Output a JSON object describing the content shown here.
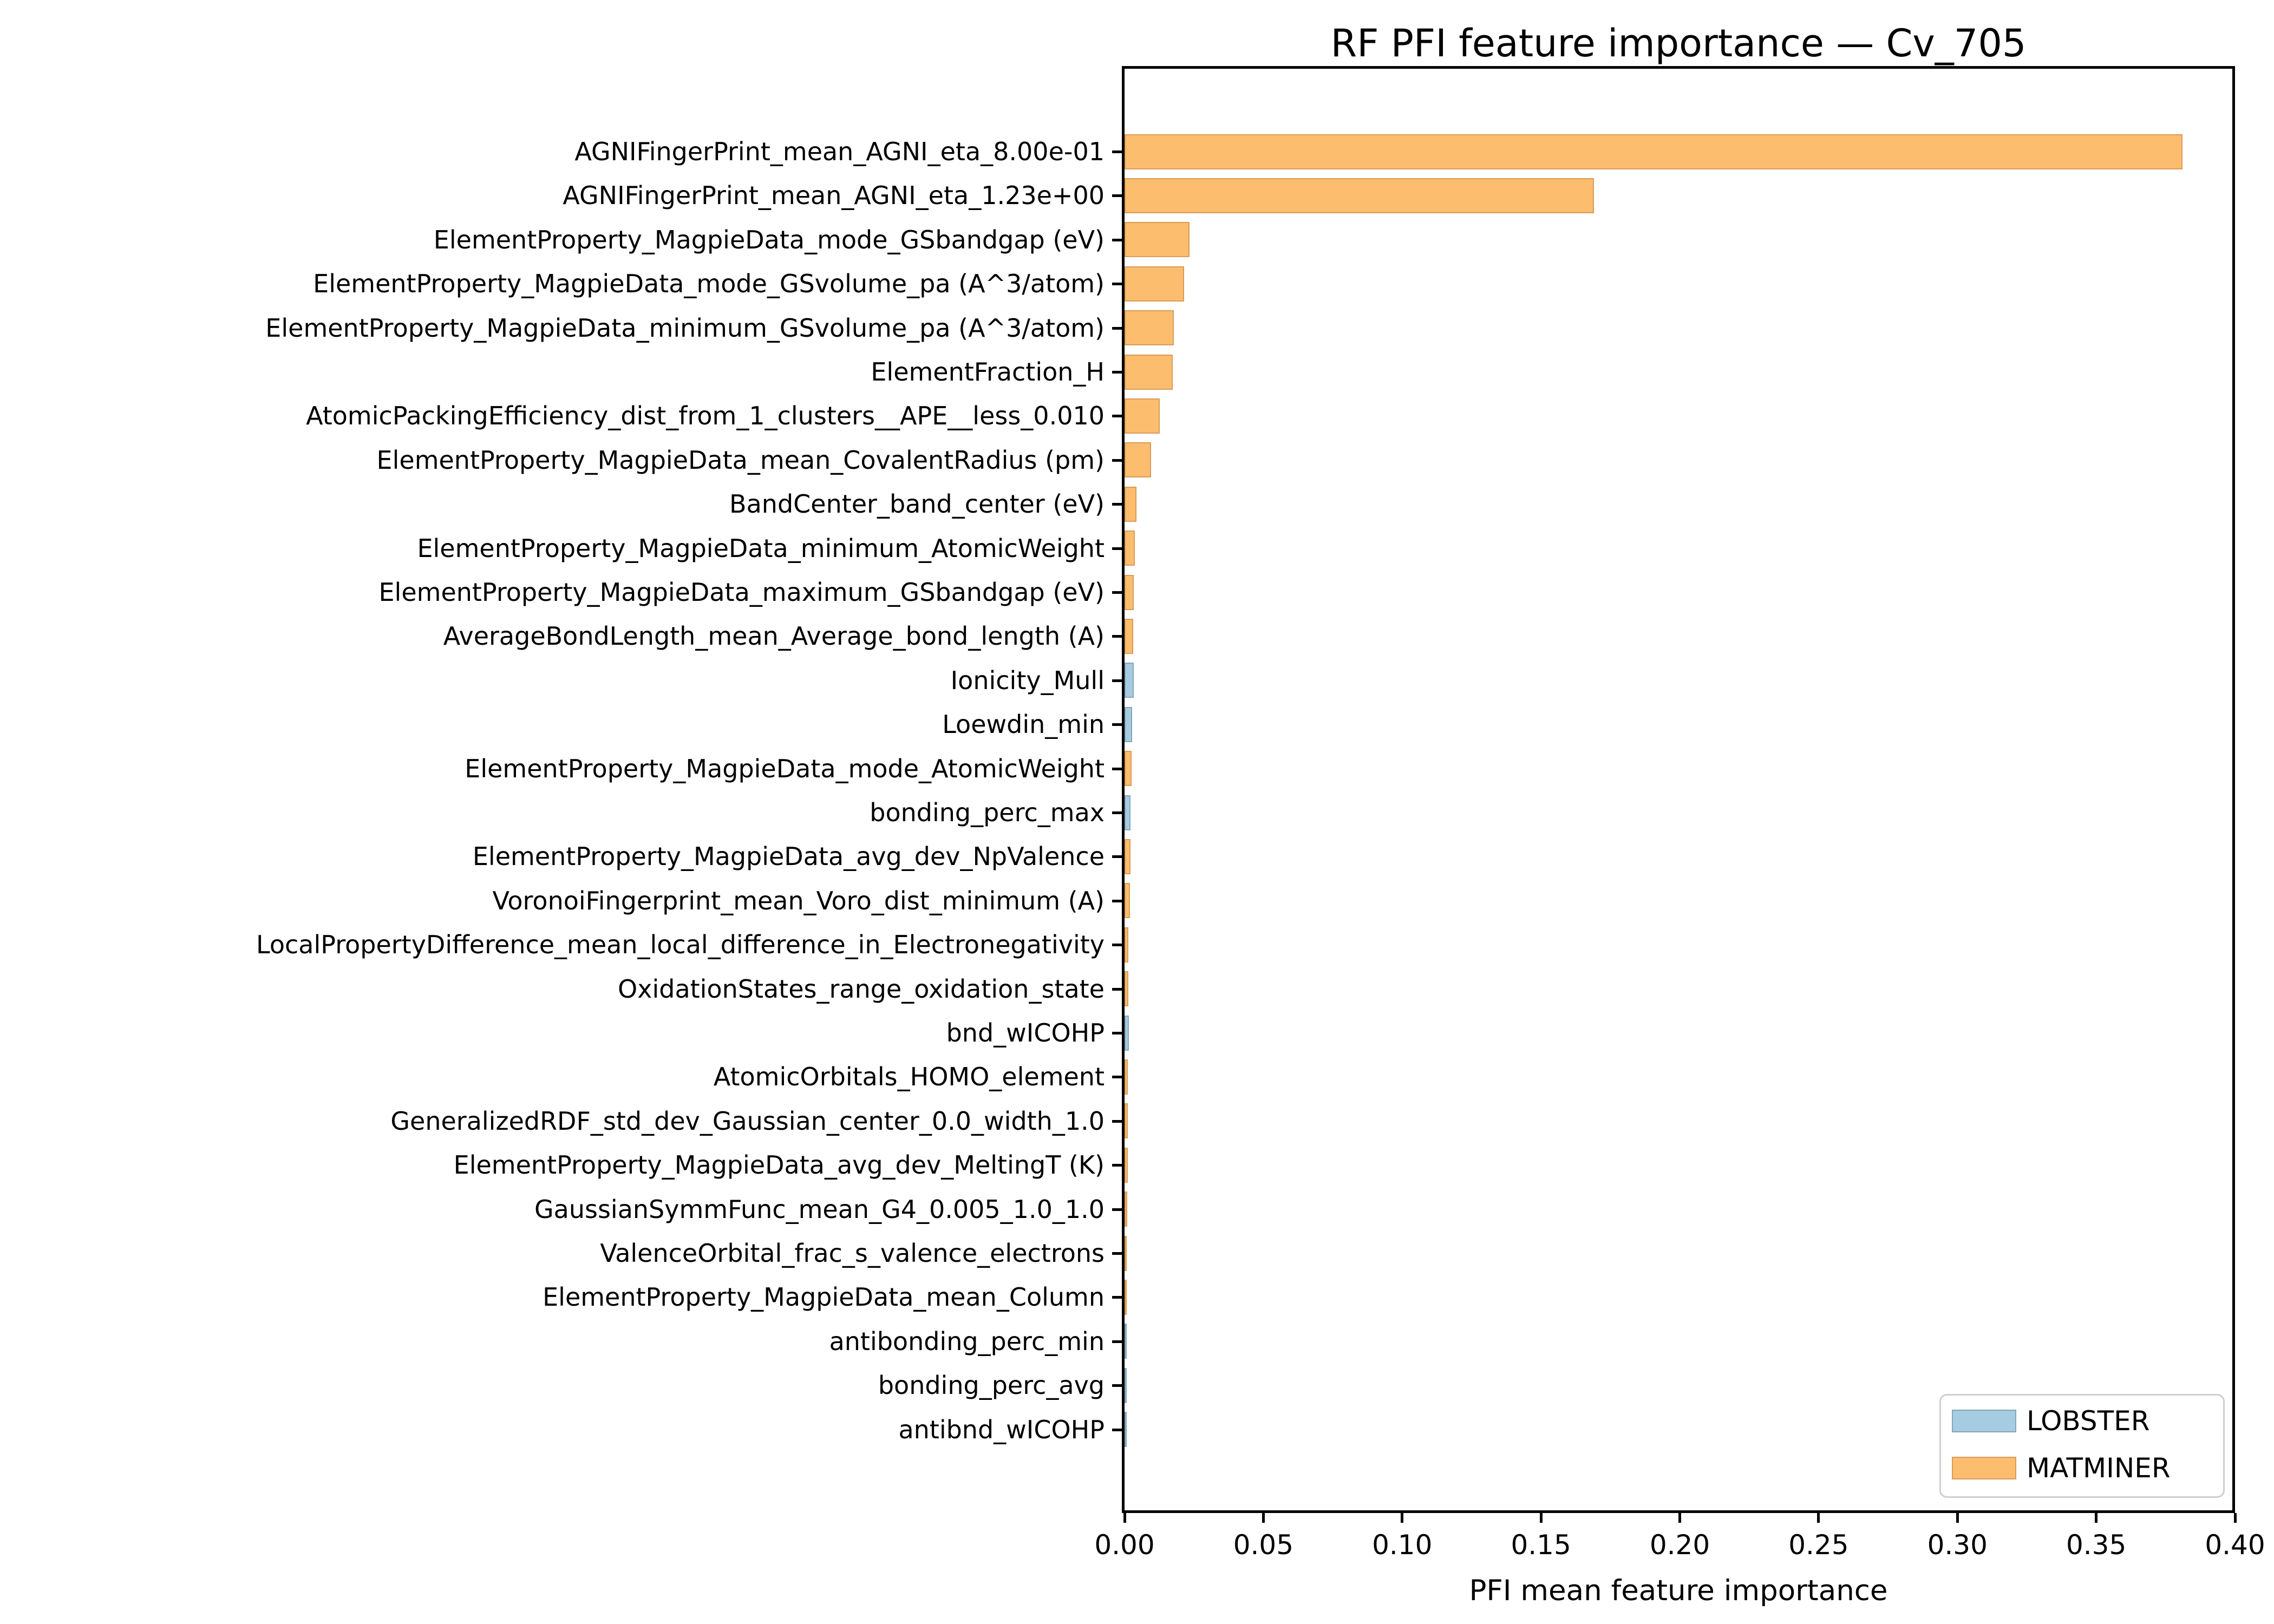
{
  "chart_data": {
    "type": "bar",
    "orientation": "horizontal",
    "title": "RF PFI feature importance — Cv_705",
    "xlabel": "PFI mean feature importance",
    "xlim": [
      0,
      0.4
    ],
    "xtick_labels": [
      "0.00",
      "0.05",
      "0.10",
      "0.15",
      "0.20",
      "0.25",
      "0.30",
      "0.35",
      "0.40"
    ],
    "xtick_values": [
      0,
      0.05,
      0.1,
      0.15,
      0.2,
      0.25,
      0.3,
      0.35,
      0.4
    ],
    "grid": false,
    "legend": {
      "position": "lower right",
      "entries": [
        {
          "name": "LOBSTER",
          "color": "#a5cce0",
          "edge": "#85a7bc"
        },
        {
          "name": "MATMINER",
          "color": "#fcbd6e",
          "edge": "#db9b56"
        }
      ]
    },
    "bars": [
      {
        "label": "AGNIFingerPrint_mean_AGNI_eta_8.00e-01",
        "value": 0.381,
        "group": "MATMINER"
      },
      {
        "label": "AGNIFingerPrint_mean_AGNI_eta_1.23e+00",
        "value": 0.169,
        "group": "MATMINER"
      },
      {
        "label": "ElementProperty_MagpieData_mode_GSbandgap (eV)",
        "value": 0.0235,
        "group": "MATMINER"
      },
      {
        "label": "ElementProperty_MagpieData_mode_GSvolume_pa (A^3/atom)",
        "value": 0.0215,
        "group": "MATMINER"
      },
      {
        "label": "ElementProperty_MagpieData_minimum_GSvolume_pa (A^3/atom)",
        "value": 0.0177,
        "group": "MATMINER"
      },
      {
        "label": "ElementFraction_H",
        "value": 0.0173,
        "group": "MATMINER"
      },
      {
        "label": "AtomicPackingEfficiency_dist_from_1_clusters__APE__less_0.010",
        "value": 0.0127,
        "group": "MATMINER"
      },
      {
        "label": "ElementProperty_MagpieData_mean_CovalentRadius (pm)",
        "value": 0.0095,
        "group": "MATMINER"
      },
      {
        "label": "BandCenter_band_center (eV)",
        "value": 0.0043,
        "group": "MATMINER"
      },
      {
        "label": "ElementProperty_MagpieData_minimum_AtomicWeight",
        "value": 0.0037,
        "group": "MATMINER"
      },
      {
        "label": "ElementProperty_MagpieData_maximum_GSbandgap (eV)",
        "value": 0.0034,
        "group": "MATMINER"
      },
      {
        "label": "AverageBondLength_mean_Average_bond_length (A)",
        "value": 0.0032,
        "group": "MATMINER"
      },
      {
        "label": "Ionicity_Mull",
        "value": 0.0034,
        "group": "LOBSTER"
      },
      {
        "label": "Loewdin_min",
        "value": 0.0027,
        "group": "LOBSTER"
      },
      {
        "label": "ElementProperty_MagpieData_mode_AtomicWeight",
        "value": 0.0025,
        "group": "MATMINER"
      },
      {
        "label": "bonding_perc_max",
        "value": 0.0021,
        "group": "LOBSTER"
      },
      {
        "label": "ElementProperty_MagpieData_avg_dev_NpValence",
        "value": 0.0021,
        "group": "MATMINER"
      },
      {
        "label": "VoronoiFingerprint_mean_Voro_dist_minimum (A)",
        "value": 0.002,
        "group": "MATMINER"
      },
      {
        "label": "LocalPropertyDifference_mean_local_difference_in_Electronegativity",
        "value": 0.0014,
        "group": "MATMINER"
      },
      {
        "label": "OxidationStates_range_oxidation_state",
        "value": 0.0014,
        "group": "MATMINER"
      },
      {
        "label": "bnd_wICOHP",
        "value": 0.0015,
        "group": "LOBSTER"
      },
      {
        "label": "AtomicOrbitals_HOMO_element",
        "value": 0.0011,
        "group": "MATMINER"
      },
      {
        "label": "GeneralizedRDF_std_dev_Gaussian_center_0.0_width_1.0",
        "value": 0.0011,
        "group": "MATMINER"
      },
      {
        "label": "ElementProperty_MagpieData_avg_dev_MeltingT (K)",
        "value": 0.0011,
        "group": "MATMINER"
      },
      {
        "label": "GaussianSymmFunc_mean_G4_0.005_1.0_1.0",
        "value": 0.0009,
        "group": "MATMINER"
      },
      {
        "label": "ValenceOrbital_frac_s_valence_electrons",
        "value": 0.0008,
        "group": "MATMINER"
      },
      {
        "label": "ElementProperty_MagpieData_mean_Column",
        "value": 0.0008,
        "group": "MATMINER"
      },
      {
        "label": "antibonding_perc_min",
        "value": 0.0008,
        "group": "LOBSTER"
      },
      {
        "label": "bonding_perc_avg",
        "value": 0.0006,
        "group": "LOBSTER"
      },
      {
        "label": "antibnd_wICOHP",
        "value": 0.0008,
        "group": "LOBSTER"
      }
    ]
  }
}
